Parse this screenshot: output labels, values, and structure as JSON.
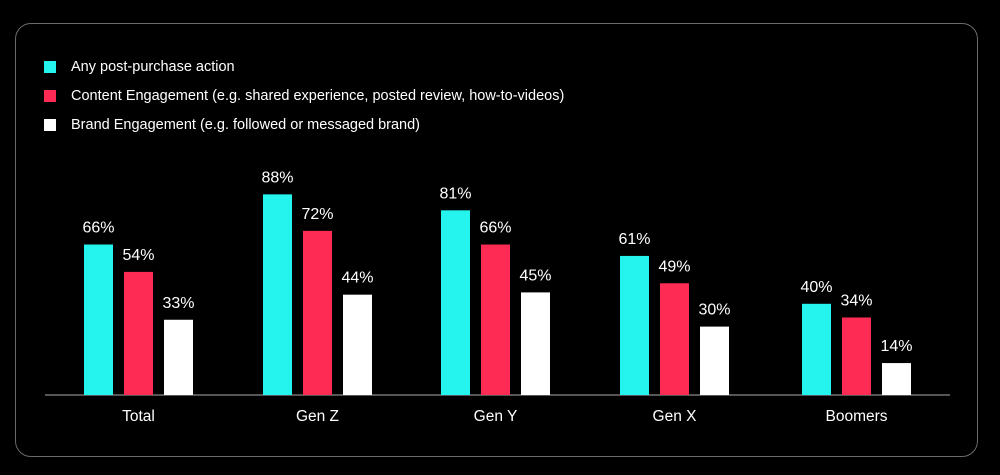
{
  "chart_data": {
    "type": "bar",
    "categories": [
      "Total",
      "Gen Z",
      "Gen Y",
      "Gen X",
      "Boomers"
    ],
    "series": [
      {
        "name": "Any post-purchase action",
        "color": "#25f4ee",
        "values": [
          66,
          88,
          81,
          61,
          40
        ],
        "labels": [
          "66%",
          "88%",
          "81%",
          "61%",
          "40%"
        ]
      },
      {
        "name": "Content Engagement (e.g. shared experience, posted review, how-to-videos)",
        "color": "#fe2c55",
        "values": [
          54,
          72,
          66,
          49,
          34
        ],
        "labels": [
          "54%",
          "72%",
          "66%",
          "49%",
          "34%"
        ]
      },
      {
        "name": "Brand Engagement (e.g. followed or messaged brand)",
        "color": "#ffffff",
        "values": [
          33,
          44,
          45,
          30,
          14
        ],
        "labels": [
          "33%",
          "44%",
          "45%",
          "30%",
          "14%"
        ]
      }
    ],
    "ylim": [
      0,
      100
    ],
    "grid": false,
    "legend_position": "top-left"
  }
}
